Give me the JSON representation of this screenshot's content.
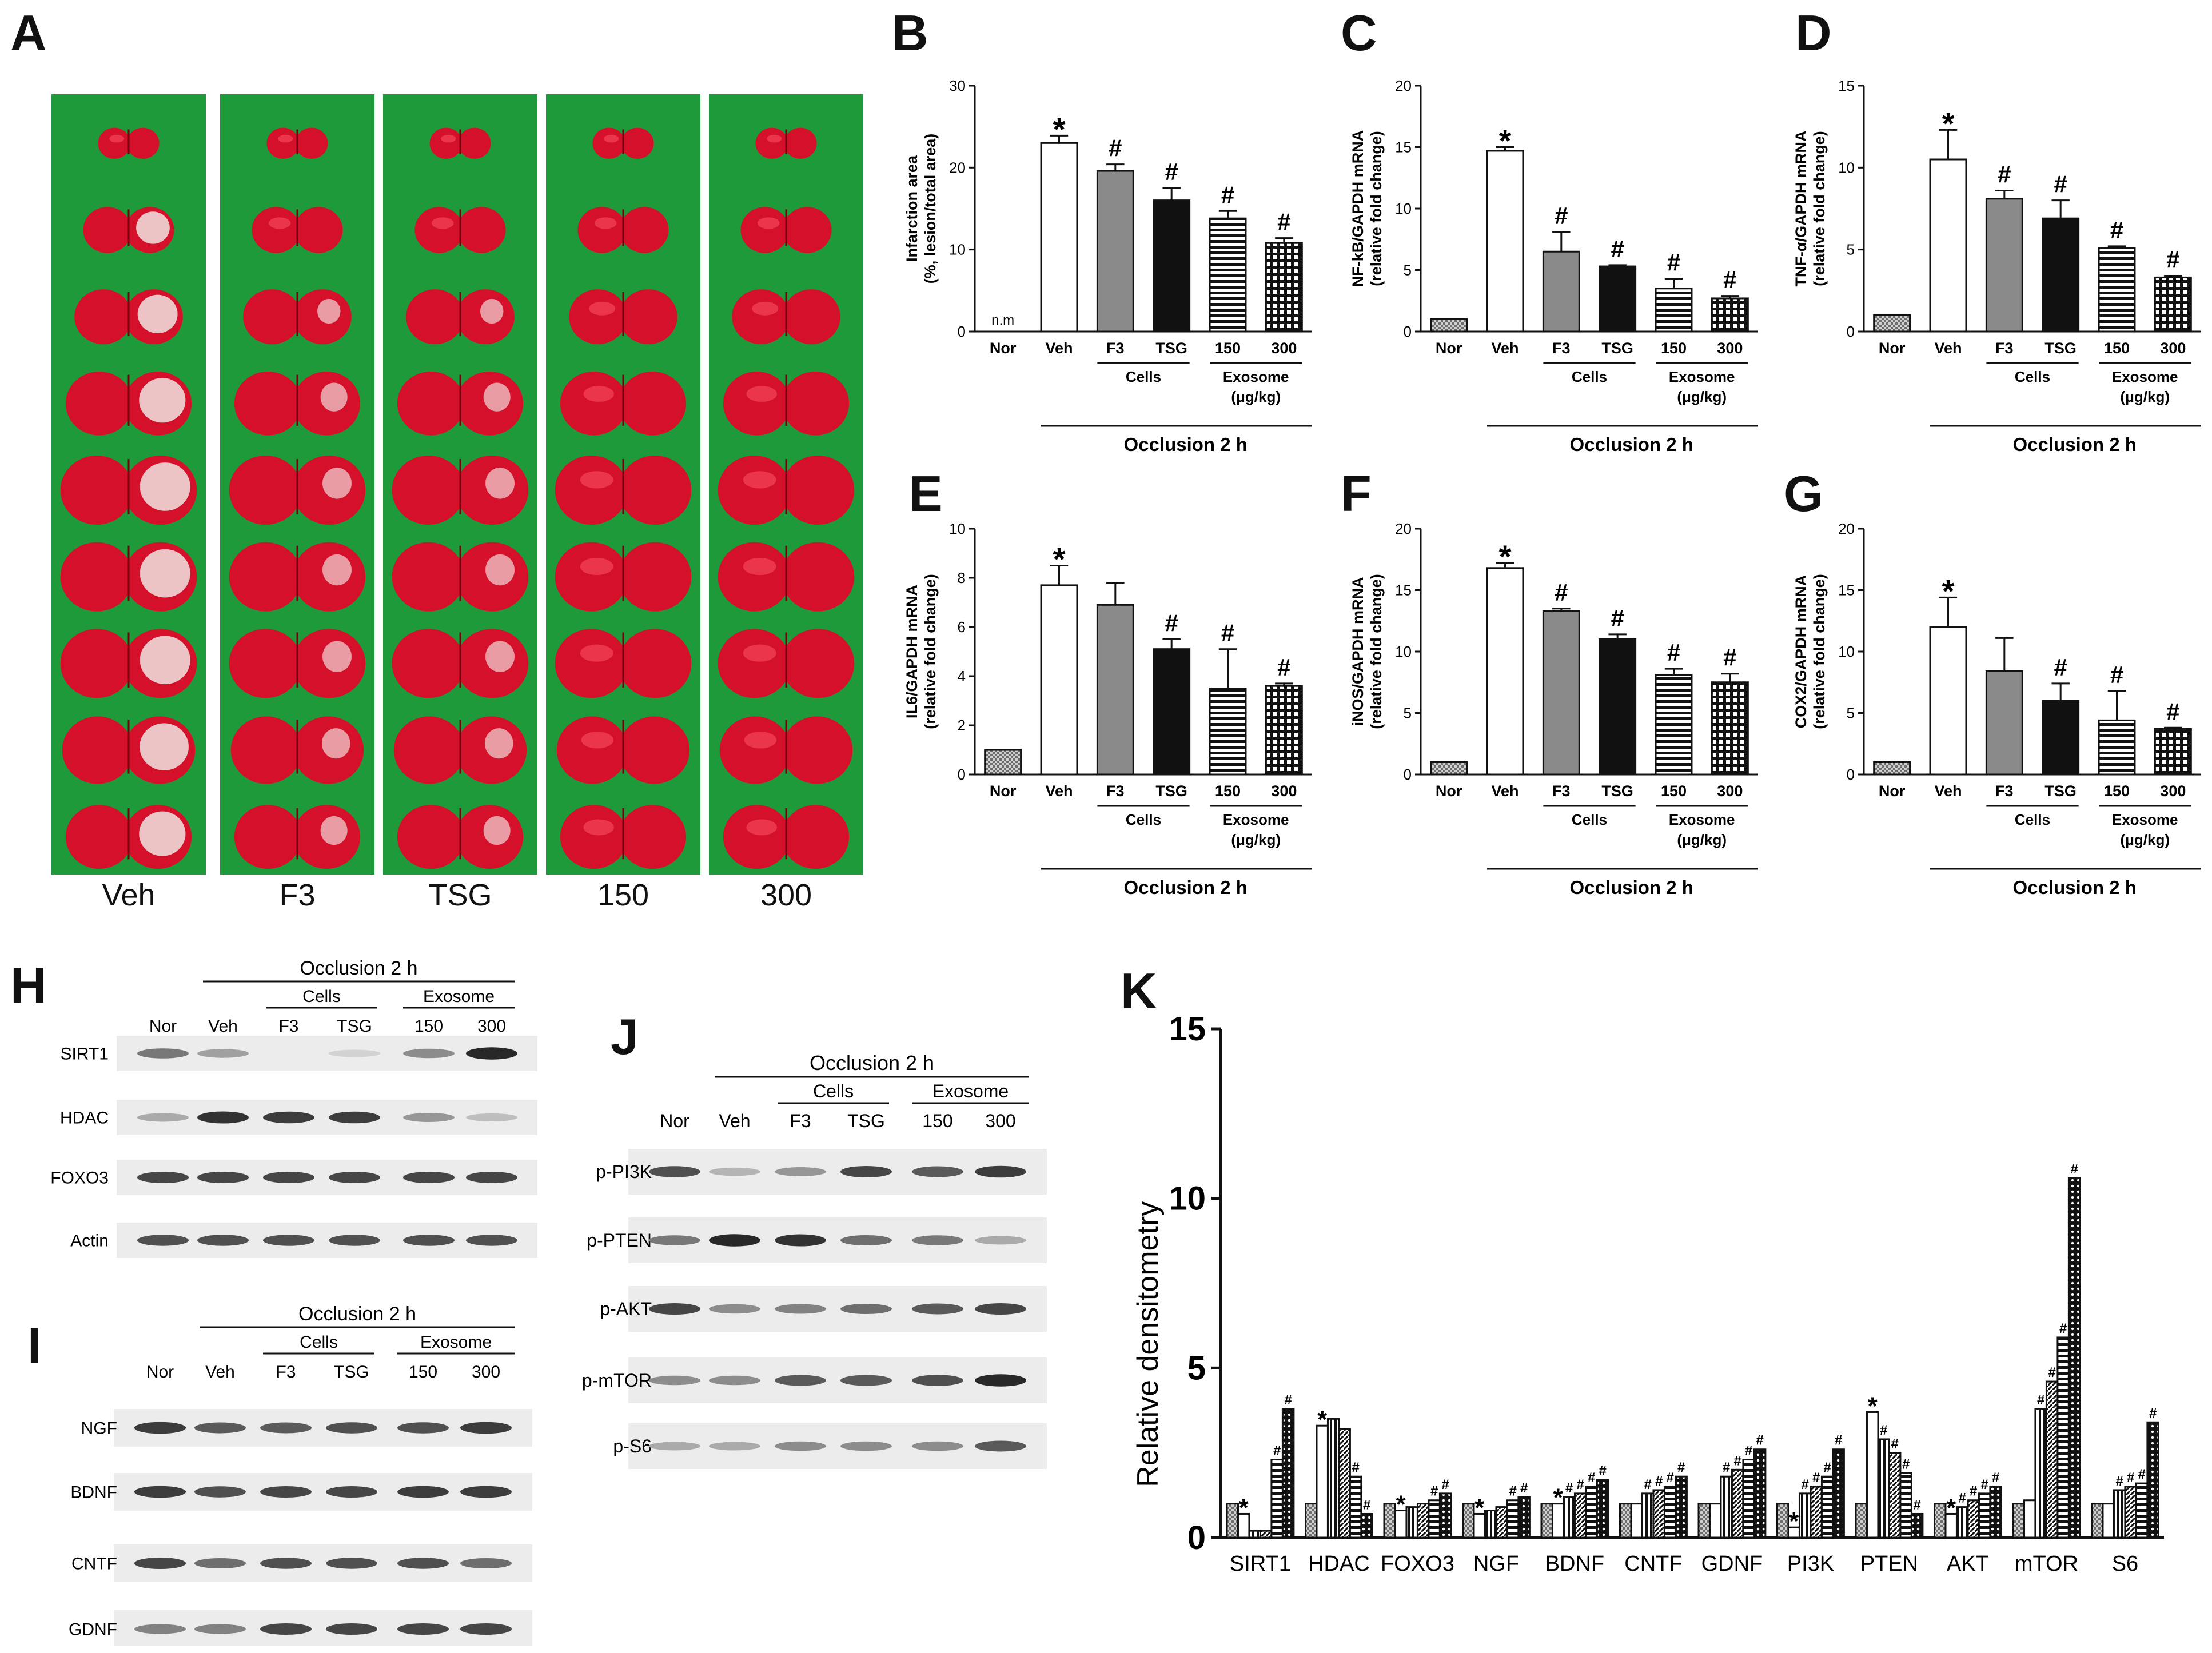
{
  "panel_labels": [
    "A",
    "B",
    "C",
    "D",
    "E",
    "F",
    "G",
    "H",
    "I",
    "J",
    "K"
  ],
  "panel_a": {
    "groups": [
      "Veh",
      "F3",
      "TSG",
      "150",
      "300"
    ]
  },
  "common_x": {
    "groups": [
      "Nor",
      "Veh",
      "F3",
      "TSG",
      "150",
      "300"
    ],
    "cells_label": "Cells",
    "exosome_label": "Exosome",
    "exosome_unit": "(μg/kg)",
    "occlusion_label": "Occlusion 2 h"
  },
  "chart_data": [
    {
      "id": "B",
      "type": "bar",
      "ylabel": [
        "Infarction area",
        "(%, lesion/total area)"
      ],
      "ylim": [
        0,
        30
      ],
      "yticks": [
        0,
        10,
        20,
        30
      ],
      "categories": [
        "Nor",
        "Veh",
        "F3",
        "TSG",
        "150",
        "300"
      ],
      "values": [
        0,
        23,
        19.6,
        16,
        13.8,
        10.8
      ],
      "errors": [
        0,
        0.9,
        0.8,
        1.5,
        0.9,
        0.6
      ],
      "annotations": [
        "n.m",
        "*",
        "#",
        "#",
        "#",
        "#"
      ]
    },
    {
      "id": "C",
      "type": "bar",
      "ylabel": [
        "NF-kB/GAPDH mRNA",
        "(relative fold change)"
      ],
      "ylim": [
        0,
        20
      ],
      "yticks": [
        0,
        5,
        10,
        15,
        20
      ],
      "categories": [
        "Nor",
        "Veh",
        "F3",
        "TSG",
        "150",
        "300"
      ],
      "values": [
        1,
        14.7,
        6.5,
        5.3,
        3.5,
        2.7
      ],
      "errors": [
        0,
        0.3,
        1.6,
        0.1,
        0.8,
        0.2
      ],
      "annotations": [
        "",
        "*",
        "#",
        "#",
        "#",
        "#"
      ]
    },
    {
      "id": "D",
      "type": "bar",
      "ylabel": [
        "TNF-α/GAPDH mRNA",
        "(relative fold change)"
      ],
      "ylim": [
        0,
        15
      ],
      "yticks": [
        0,
        5,
        10,
        15
      ],
      "categories": [
        "Nor",
        "Veh",
        "F3",
        "TSG",
        "150",
        "300"
      ],
      "values": [
        1,
        10.5,
        8.1,
        6.9,
        5.1,
        3.3
      ],
      "errors": [
        0,
        1.8,
        0.5,
        1.1,
        0.1,
        0.1
      ],
      "annotations": [
        "",
        "*",
        "#",
        "#",
        "#",
        "#"
      ]
    },
    {
      "id": "E",
      "type": "bar",
      "ylabel": [
        "IL6/GAPDH mRNA",
        "(relative fold change)"
      ],
      "ylim": [
        0,
        10
      ],
      "yticks": [
        0,
        2,
        4,
        6,
        8,
        10
      ],
      "categories": [
        "Nor",
        "Veh",
        "F3",
        "TSG",
        "150",
        "300"
      ],
      "values": [
        1,
        7.7,
        6.9,
        5.1,
        3.5,
        3.6
      ],
      "errors": [
        0,
        0.8,
        0.9,
        0.4,
        1.6,
        0.1
      ],
      "annotations": [
        "",
        "*",
        "",
        "#",
        "#",
        "#"
      ]
    },
    {
      "id": "F",
      "type": "bar",
      "ylabel": [
        "iNOS/GAPDH mRNA",
        "(relative fold change)"
      ],
      "ylim": [
        0,
        20
      ],
      "yticks": [
        0,
        5,
        10,
        15,
        20
      ],
      "categories": [
        "Nor",
        "Veh",
        "F3",
        "TSG",
        "150",
        "300"
      ],
      "values": [
        1,
        16.8,
        13.3,
        11,
        8.1,
        7.5
      ],
      "errors": [
        0,
        0.4,
        0.2,
        0.4,
        0.5,
        0.7
      ],
      "annotations": [
        "",
        "*",
        "#",
        "#",
        "#",
        "#"
      ]
    },
    {
      "id": "G",
      "type": "bar",
      "ylabel": [
        "COX2/GAPDH mRNA",
        "(relative fold change)"
      ],
      "ylim": [
        0,
        20
      ],
      "yticks": [
        0,
        5,
        10,
        15,
        20
      ],
      "categories": [
        "Nor",
        "Veh",
        "F3",
        "TSG",
        "150",
        "300"
      ],
      "values": [
        1,
        12,
        8.4,
        6,
        4.4,
        3.7
      ],
      "errors": [
        0,
        2.4,
        2.7,
        1.4,
        2.4,
        0.1
      ],
      "annotations": [
        "",
        "*",
        "",
        "#",
        "#",
        "#"
      ]
    },
    {
      "id": "K",
      "type": "bar",
      "ylabel": "Relative densitometry",
      "ylim": [
        0,
        15
      ],
      "yticks": [
        0,
        5,
        10,
        15
      ],
      "categories": [
        "SIRT1",
        "HDAC",
        "FOXO3",
        "NGF",
        "BDNF",
        "CNTF",
        "GDNF",
        "PI3K",
        "PTEN",
        "AKT",
        "mTOR",
        "S6"
      ],
      "series_names": [
        "Nor",
        "Veh",
        "F3",
        "TSG",
        "150",
        "300"
      ],
      "values": [
        [
          1,
          0.7,
          0.2,
          0.2,
          2.3,
          3.8
        ],
        [
          1,
          3.3,
          3.5,
          3.2,
          1.8,
          0.7
        ],
        [
          1,
          0.8,
          0.9,
          1.0,
          1.1,
          1.3
        ],
        [
          1,
          0.7,
          0.8,
          0.9,
          1.1,
          1.2
        ],
        [
          1,
          1.0,
          1.2,
          1.3,
          1.5,
          1.7
        ],
        [
          1,
          1.0,
          1.3,
          1.4,
          1.5,
          1.8
        ],
        [
          1,
          1.0,
          1.8,
          2.0,
          2.3,
          2.6
        ],
        [
          1,
          0.3,
          1.3,
          1.5,
          1.8,
          2.6
        ],
        [
          1,
          3.7,
          2.9,
          2.5,
          1.9,
          0.7
        ],
        [
          1,
          0.7,
          0.9,
          1.1,
          1.3,
          1.5
        ],
        [
          1,
          1.1,
          3.8,
          4.6,
          5.9,
          10.6
        ],
        [
          1,
          1.0,
          1.4,
          1.5,
          1.6,
          3.4
        ]
      ],
      "annotations": [
        [
          "",
          "*",
          "",
          "",
          "#",
          "#"
        ],
        [
          "",
          "*",
          "",
          "",
          "#",
          "#"
        ],
        [
          "",
          "*",
          "",
          "",
          "#",
          "#"
        ],
        [
          "",
          "*",
          "",
          "",
          "#",
          "#"
        ],
        [
          "",
          "*",
          "#",
          "#",
          "#",
          "#"
        ],
        [
          "",
          "",
          "#",
          "#",
          "#",
          "#"
        ],
        [
          "",
          "",
          "#",
          "#",
          "#",
          "#"
        ],
        [
          "",
          "*",
          "#",
          "#",
          "#",
          "#"
        ],
        [
          "",
          "*",
          "#",
          "#",
          "#",
          "#"
        ],
        [
          "",
          "*",
          "#",
          "#",
          "#",
          "#"
        ],
        [
          "",
          "",
          "#",
          "#",
          "#",
          "#"
        ],
        [
          "",
          "",
          "#",
          "#",
          "#",
          "#"
        ]
      ]
    }
  ],
  "blot_h": {
    "occlusion": "Occlusion  2 h",
    "cells": "Cells",
    "exosome": "Exosome",
    "lanes": [
      "Nor",
      "Veh",
      "F3",
      "TSG",
      "150",
      "300"
    ],
    "rows": [
      "SIRT1",
      "HDAC",
      "FOXO3",
      "Actin"
    ]
  },
  "blot_i": {
    "occlusion": "Occlusion  2 h",
    "cells": "Cells",
    "exosome": "Exosome",
    "lanes": [
      "Nor",
      "Veh",
      "F3",
      "TSG",
      "150",
      "300"
    ],
    "rows": [
      "NGF",
      "BDNF",
      "CNTF",
      "GDNF"
    ]
  },
  "blot_j": {
    "occlusion": "Occlusion  2 h",
    "cells": "Cells",
    "exosome": "Exosome",
    "lanes": [
      "Nor",
      "Veh",
      "F3",
      "TSG",
      "150",
      "300"
    ],
    "rows": [
      "p-PI3K",
      "p-PTEN",
      "p-AKT",
      "p-mTOR",
      "p-S6"
    ]
  }
}
